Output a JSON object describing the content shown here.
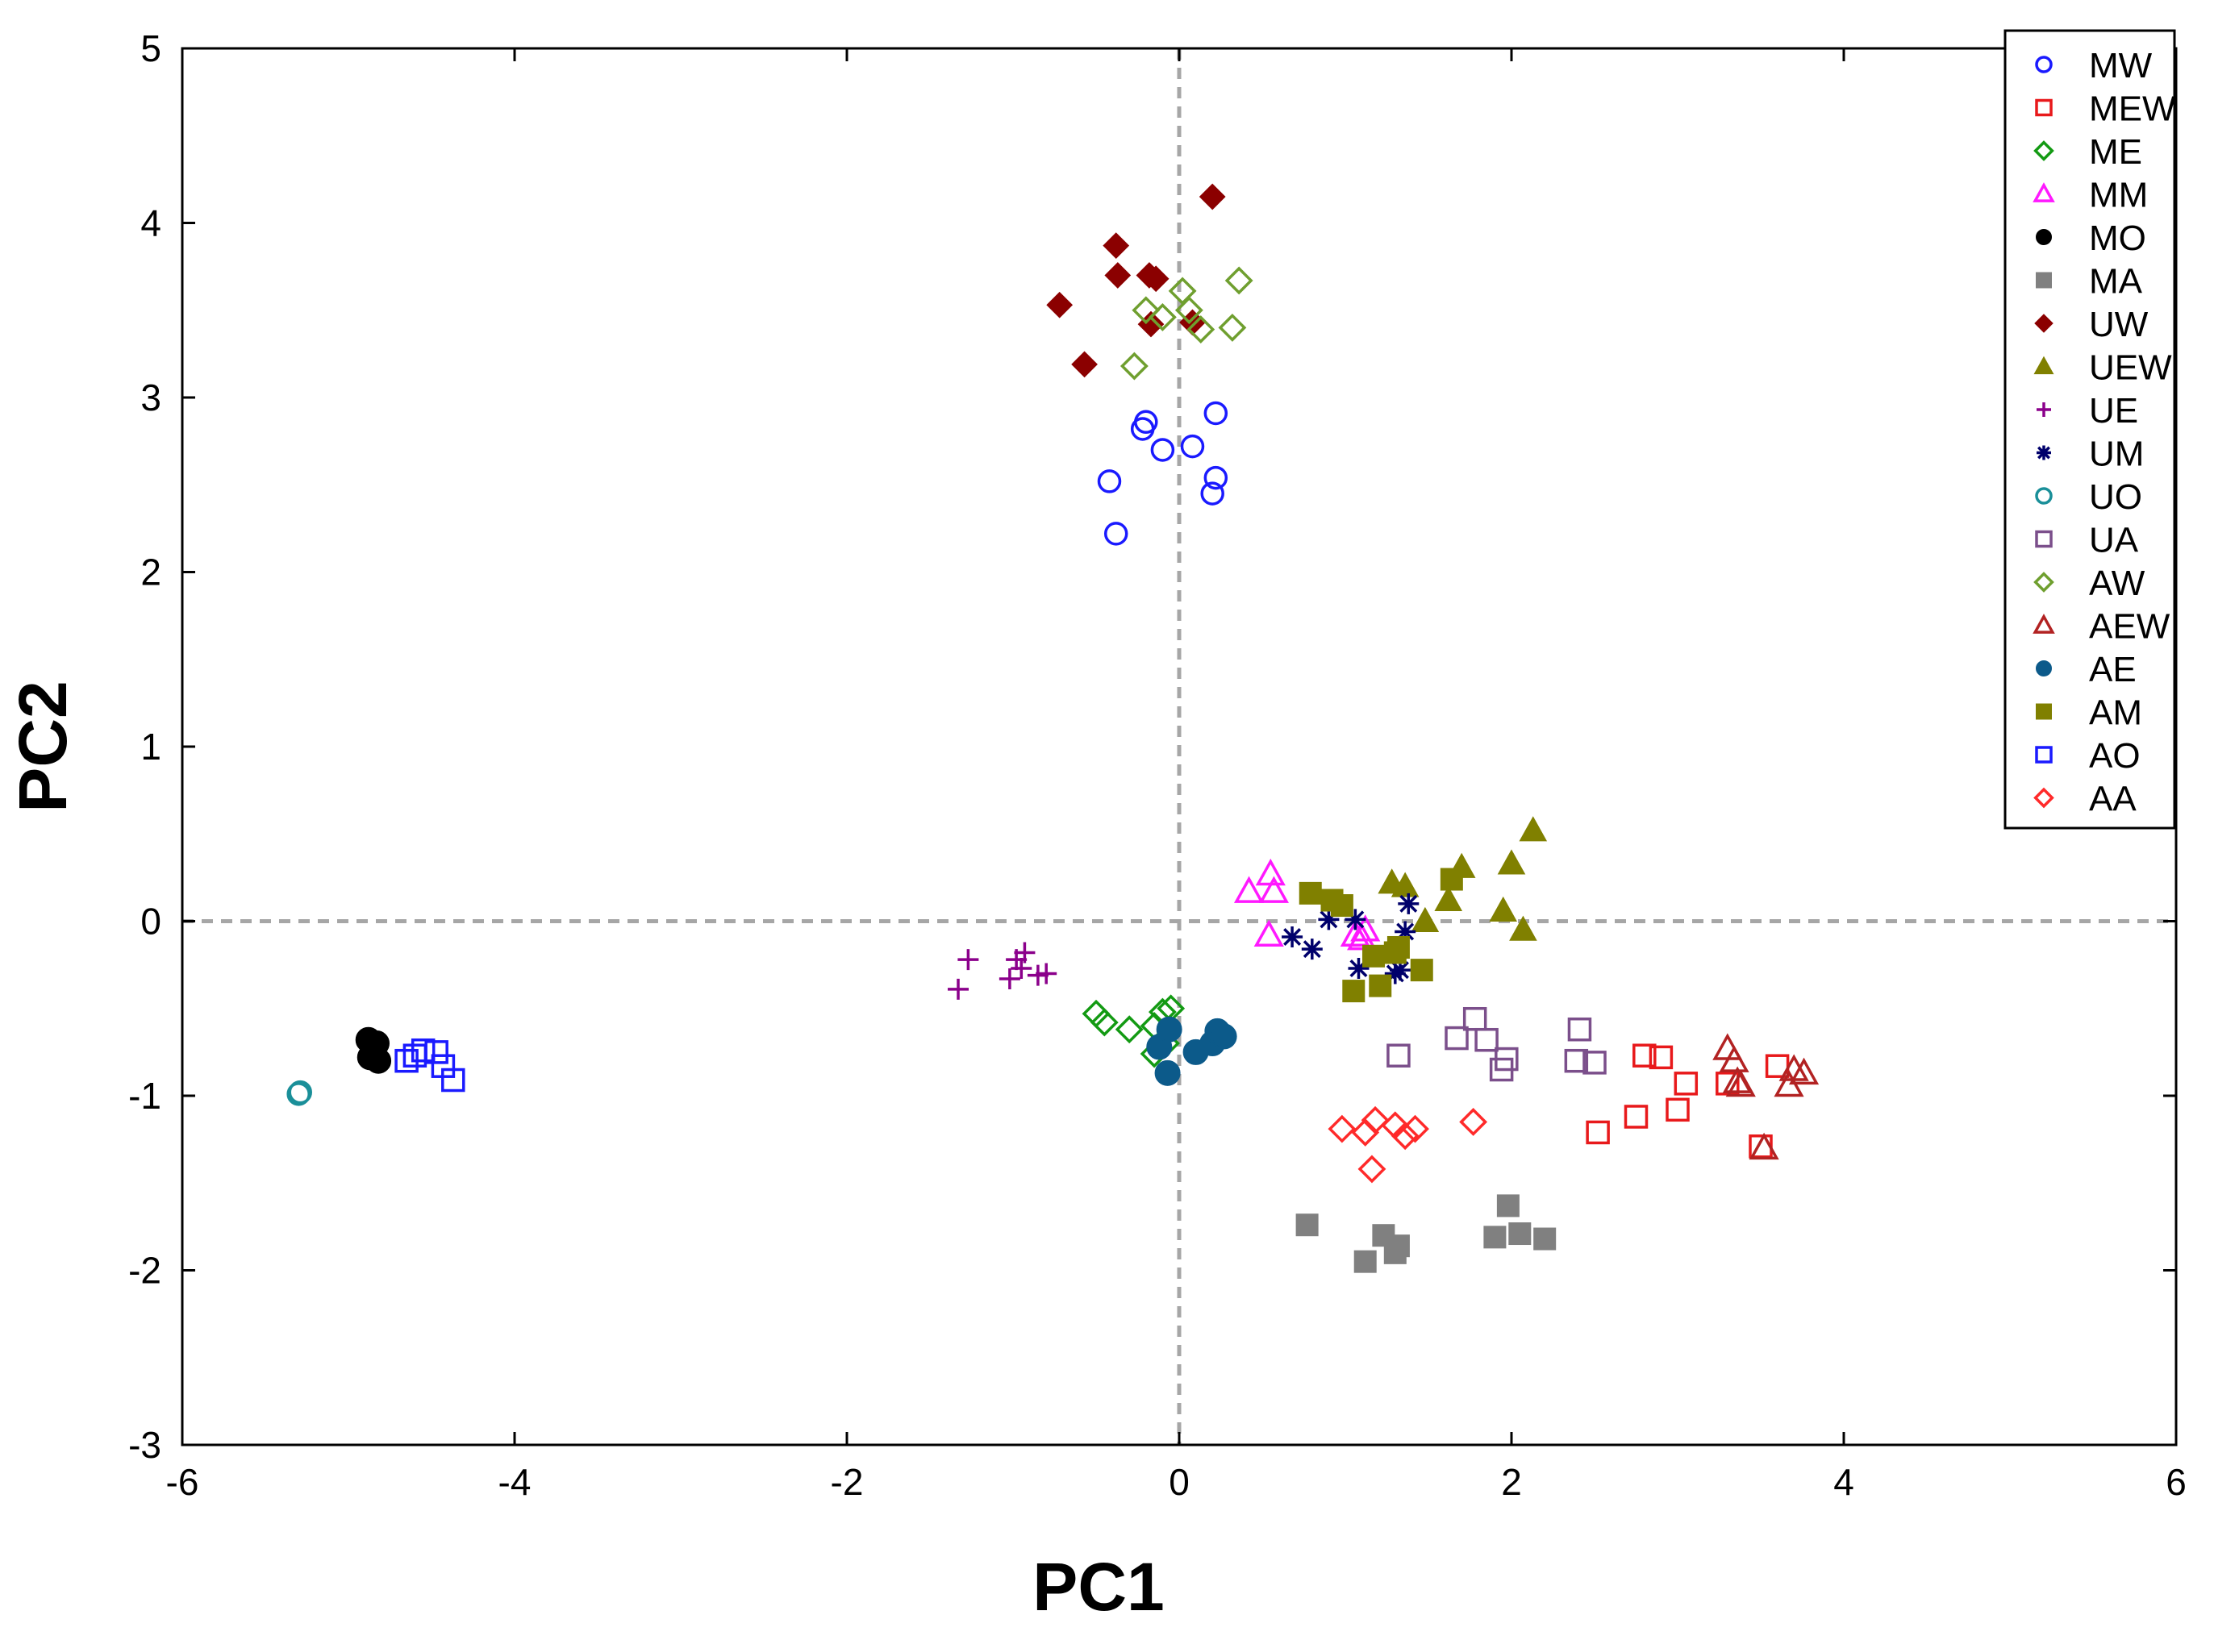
{
  "chart_data": {
    "type": "scatter",
    "title": "",
    "xlabel": "PC1",
    "ylabel": "PC2",
    "xlim": [
      -6,
      6
    ],
    "ylim": [
      -3,
      5
    ],
    "xticks": [
      -6,
      -4,
      -2,
      0,
      2,
      4,
      6
    ],
    "yticks": [
      -3,
      -2,
      -1,
      0,
      1,
      2,
      3,
      4,
      5
    ],
    "reference_lines": {
      "x": 0,
      "y": 0
    },
    "legend_position": "top-right",
    "series": [
      {
        "name": "MW",
        "marker": "circle",
        "filled": false,
        "color": "#1a1aff",
        "x": [
          -0.42,
          -0.38,
          -0.22,
          -0.2,
          -0.1,
          0.08,
          0.22,
          0.22,
          0.2
        ],
        "y": [
          2.52,
          2.22,
          2.82,
          2.86,
          2.7,
          2.72,
          2.91,
          2.54,
          2.45
        ]
      },
      {
        "name": "MEW",
        "marker": "square",
        "filled": false,
        "color": "#e8191b",
        "x": [
          2.52,
          2.75,
          2.8,
          2.9,
          3.05,
          3.0,
          3.3,
          3.6,
          3.5
        ],
        "y": [
          -1.21,
          -1.12,
          -0.77,
          -0.78,
          -0.93,
          -1.08,
          -0.93,
          -0.83,
          -1.29
        ]
      },
      {
        "name": "ME",
        "marker": "diamond",
        "filled": false,
        "color": "#139a13",
        "x": [
          -0.5,
          -0.45,
          -0.3,
          -0.15,
          -0.1,
          -0.05,
          -0.15,
          -0.08
        ],
        "y": [
          -0.53,
          -0.58,
          -0.62,
          -0.76,
          -0.52,
          -0.5,
          -0.6,
          -0.7
        ]
      },
      {
        "name": "MM",
        "marker": "triangle",
        "filled": false,
        "color": "#ff19ff",
        "x": [
          0.42,
          0.55,
          0.57,
          0.54,
          1.06,
          1.1,
          1.12
        ],
        "y": [
          0.17,
          0.27,
          0.17,
          -0.08,
          -0.08,
          -0.1,
          -0.05
        ]
      },
      {
        "name": "MO",
        "marker": "circle",
        "filled": true,
        "color": "#000000",
        "x": [
          -4.88,
          -4.83,
          -4.87,
          -4.82,
          -4.85
        ],
        "y": [
          -0.68,
          -0.7,
          -0.78,
          -0.8,
          -0.75
        ]
      },
      {
        "name": "MA",
        "marker": "square",
        "filled": true,
        "color": "#808080",
        "x": [
          0.77,
          1.12,
          1.23,
          1.32,
          1.3,
          1.9,
          1.98,
          2.05,
          2.2
        ],
        "y": [
          -1.74,
          -1.95,
          -1.8,
          -1.86,
          -1.9,
          -1.81,
          -1.63,
          -1.79,
          -1.82
        ]
      },
      {
        "name": "UW",
        "marker": "diamond",
        "filled": true,
        "color": "#8b0000",
        "x": [
          -0.72,
          -0.57,
          -0.38,
          -0.37,
          -0.18,
          -0.14,
          -0.17,
          0.08,
          0.2
        ],
        "y": [
          3.53,
          3.19,
          3.87,
          3.7,
          3.7,
          3.68,
          3.42,
          3.43,
          4.15
        ]
      },
      {
        "name": "UEW",
        "marker": "triangle",
        "filled": true,
        "color": "#808000",
        "x": [
          1.28,
          1.36,
          1.48,
          1.62,
          1.7,
          1.95,
          2.0,
          2.07,
          2.13
        ],
        "y": [
          0.22,
          0.2,
          0.0,
          0.12,
          0.31,
          0.06,
          0.33,
          -0.05,
          0.52
        ]
      },
      {
        "name": "UE",
        "marker": "plus",
        "filled": false,
        "color": "#8b008b",
        "x": [
          -1.33,
          -1.27,
          -1.02,
          -0.98,
          -0.93,
          -0.85,
          -0.8,
          -0.95
        ],
        "y": [
          -0.39,
          -0.22,
          -0.33,
          -0.22,
          -0.18,
          -0.31,
          -0.3,
          -0.27
        ]
      },
      {
        "name": "UM",
        "marker": "asterisk",
        "filled": false,
        "color": "#00006b",
        "x": [
          0.68,
          0.8,
          0.9,
          1.06,
          1.08,
          1.3,
          1.33,
          1.36,
          1.38
        ],
        "y": [
          -0.09,
          -0.16,
          0.01,
          0.01,
          -0.27,
          -0.3,
          -0.28,
          -0.06,
          0.1
        ]
      },
      {
        "name": "UO",
        "marker": "circle",
        "filled": false,
        "color": "#1a8f99",
        "x": [
          -5.3,
          -5.29
        ],
        "y": [
          -0.99,
          -0.98
        ]
      },
      {
        "name": "UA",
        "marker": "square",
        "filled": false,
        "color": "#7b4f8b",
        "x": [
          1.32,
          1.67,
          1.78,
          1.85,
          1.94,
          1.97,
          2.39,
          2.41,
          2.5
        ],
        "y": [
          -0.77,
          -0.67,
          -0.56,
          -0.68,
          -0.85,
          -0.79,
          -0.8,
          -0.62,
          -0.81
        ]
      },
      {
        "name": "AW",
        "marker": "diamond",
        "filled": false,
        "color": "#6f9f2f",
        "x": [
          -0.27,
          -0.2,
          -0.1,
          0.02,
          0.06,
          0.13,
          0.32,
          0.36
        ],
        "y": [
          3.18,
          3.5,
          3.46,
          3.61,
          3.5,
          3.39,
          3.4,
          3.67
        ]
      },
      {
        "name": "AEW",
        "marker": "triangle",
        "filled": false,
        "color": "#b22222",
        "x": [
          3.3,
          3.34,
          3.36,
          3.38,
          3.52,
          3.67,
          3.7,
          3.76
        ],
        "y": [
          -0.73,
          -0.8,
          -0.92,
          -0.94,
          -1.3,
          -0.94,
          -0.85,
          -0.87
        ]
      },
      {
        "name": "AE",
        "marker": "circle",
        "filled": true,
        "color": "#0c5a8a",
        "x": [
          -0.12,
          -0.06,
          -0.07,
          0.1,
          0.2,
          0.23,
          0.27
        ],
        "y": [
          -0.72,
          -0.62,
          -0.87,
          -0.75,
          -0.7,
          -0.63,
          -0.66
        ]
      },
      {
        "name": "AM",
        "marker": "square",
        "filled": true,
        "color": "#808000",
        "x": [
          0.79,
          0.92,
          0.98,
          1.05,
          1.17,
          1.21,
          1.3,
          1.32,
          1.46,
          1.64
        ],
        "y": [
          0.16,
          0.12,
          0.09,
          -0.4,
          -0.2,
          -0.37,
          -0.18,
          -0.15,
          -0.28,
          0.24
        ]
      },
      {
        "name": "AO",
        "marker": "square",
        "filled": false,
        "color": "#1a1aff",
        "x": [
          -4.65,
          -4.6,
          -4.55,
          -4.47,
          -4.43,
          -4.37
        ],
        "y": [
          -0.8,
          -0.77,
          -0.74,
          -0.75,
          -0.83,
          -0.91
        ]
      },
      {
        "name": "AA",
        "marker": "diamond",
        "filled": false,
        "color": "#ff2a2a",
        "x": [
          0.98,
          1.12,
          1.16,
          1.18,
          1.3,
          1.36,
          1.42,
          1.77
        ],
        "y": [
          -1.19,
          -1.21,
          -1.42,
          -1.14,
          -1.17,
          -1.23,
          -1.19,
          -1.15
        ]
      }
    ]
  }
}
